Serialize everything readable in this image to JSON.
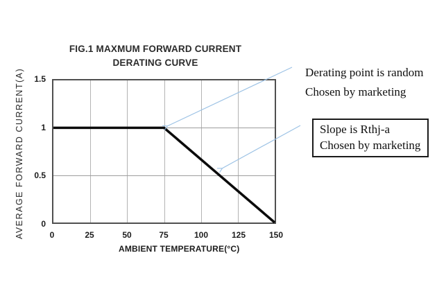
{
  "figure": {
    "title_line1": "FIG.1 MAXMUM FORWARD CURRENT",
    "title_line2": "DERATING CURVE"
  },
  "chart_data": {
    "type": "line",
    "title": "FIG.1 MAXMUM FORWARD CURRENT DERATING CURVE",
    "xlabel": "AMBIENT TEMPERATURE(°C)",
    "ylabel": "AVERAGE FORWARD CURRENT(A)",
    "xlim": [
      0,
      150
    ],
    "ylim": [
      0,
      1.5
    ],
    "x_ticks": [
      "0",
      "25",
      "50",
      "75",
      "100",
      "125",
      "150"
    ],
    "y_ticks": [
      "0",
      "0.5",
      "1",
      "1.5"
    ],
    "grid": true,
    "legend": "none",
    "series": [
      {
        "name": "maximum forward current derating curve",
        "x": [
          0,
          75,
          150
        ],
        "y": [
          1,
          1,
          0
        ]
      }
    ],
    "knee_point": {
      "x": 75,
      "y": 1
    }
  },
  "annotations": {
    "derating_point": {
      "line1": "Derating point is random",
      "line2": "Chosen by marketing"
    },
    "slope_box": {
      "line1": "Slope is Rthj-a",
      "line2": "Chosen by marketing"
    }
  },
  "colors": {
    "curve": "#0b0b0b",
    "leader_line": "#9cc2e5",
    "grid_line": "#b3b3b3",
    "plot_border": "#4f4f4f",
    "annotation_box_border": "#1a1a1a",
    "background": "#ffffff"
  }
}
